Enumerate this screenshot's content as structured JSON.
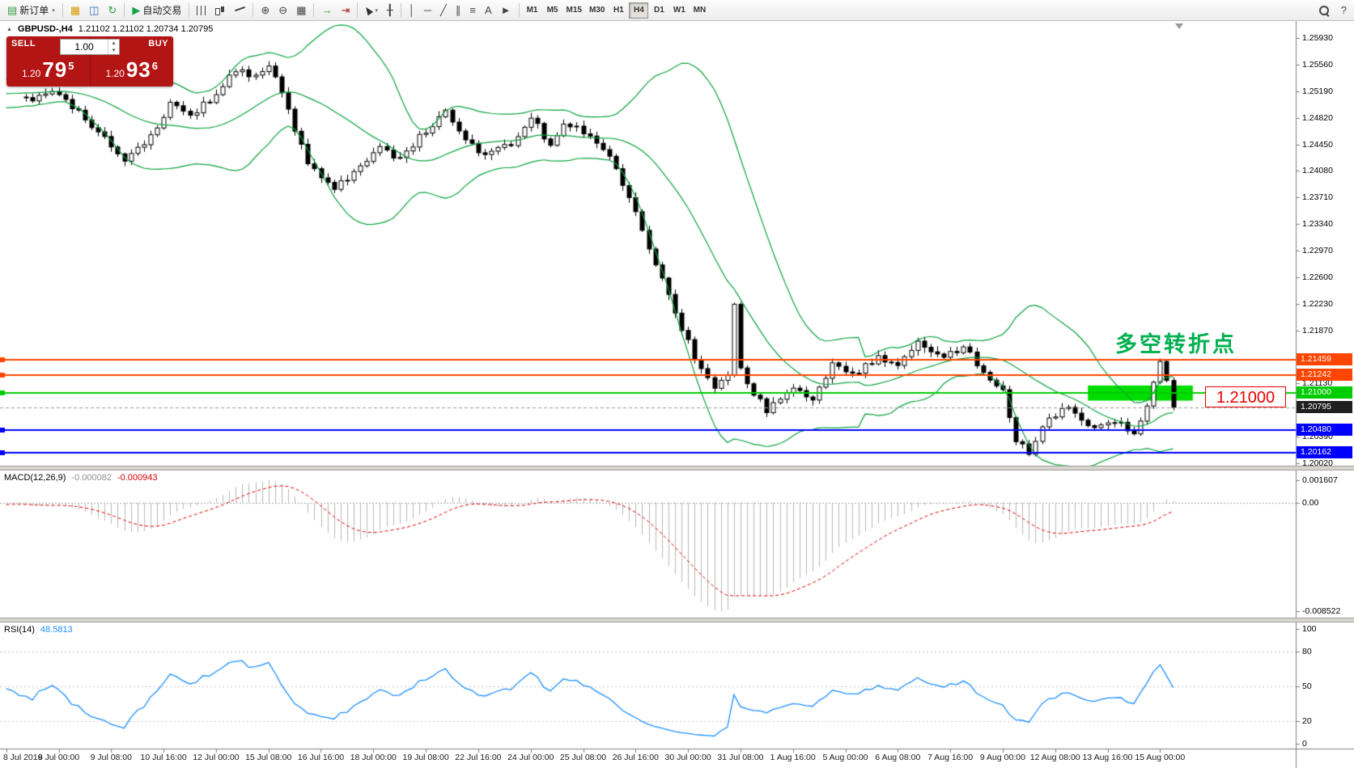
{
  "colors": {
    "bollinger": "#0aa33e",
    "rsi_line": "#1e90ff",
    "macd_hist": "#b8b8b8",
    "macd_signal": "#e00000",
    "axis_line": "#808080",
    "candle_up_fill": "#ffffff",
    "candle_down_fill": "#000000",
    "candle_stroke": "#000000",
    "current_chip_bg": "#1f1f1f",
    "annotation_green": "#00b050",
    "rect_fill": "#00dd00",
    "price_label_red": "#e80000",
    "hline_orange": "#ff4500",
    "hline_green": "#00cc00",
    "hline_blue": "#0000ff"
  },
  "icons": {
    "new-order": "▤",
    "chart-window": "▦",
    "profiles": "◫",
    "refresh": "↻",
    "play": "▶",
    "tile": "▦",
    "autoscroll": "→",
    "shift": "⇥",
    "crosshair": "╂",
    "vline": "│",
    "hline": "─",
    "trendline": "╱",
    "channel": "∥",
    "fibonacci": "≡",
    "text": "A",
    "arrow": "►",
    "zoom-in": "⊕",
    "zoom-out": "⊖",
    "question": "?",
    "css-ohlc": "",
    "css-candle": "",
    "css-line": "",
    "css-cursor": "",
    "css-lens": ""
  },
  "toolbar": {
    "groups": [
      {
        "items": [
          {
            "name": "new-order-button",
            "icon": "new-order",
            "icon_color": "#2f9e44",
            "label": "新订单",
            "caret": true
          }
        ]
      },
      {
        "items": [
          {
            "name": "charts-button",
            "icon": "chart-window",
            "icon_color": "#d79b00"
          },
          {
            "name": "profiles-button",
            "icon": "profiles",
            "icon_color": "#2e6fb7"
          },
          {
            "name": "refresh-button",
            "icon": "refresh",
            "icon_color": "#2f9e44"
          }
        ]
      },
      {
        "items": [
          {
            "name": "autotrading-button",
            "icon": "play",
            "icon_color": "#18a348",
            "label": "自动交易"
          }
        ]
      },
      {
        "items": [
          {
            "name": "bar-chart-button",
            "icon": "css-ohlc"
          },
          {
            "name": "candlestick-button",
            "icon": "css-candle"
          },
          {
            "name": "line-chart-button",
            "icon": "css-line"
          }
        ]
      },
      {
        "items": [
          {
            "name": "zoom-in-button",
            "icon": "zoom-in"
          },
          {
            "name": "zoom-out-button",
            "icon": "zoom-out"
          },
          {
            "name": "tile-windows-button",
            "icon": "tile"
          }
        ]
      },
      {
        "items": [
          {
            "name": "auto-scroll-button",
            "icon": "autoscroll",
            "icon_color": "#2f9e44"
          },
          {
            "name": "chart-shift-button",
            "icon": "shift",
            "icon_color": "#b02020"
          }
        ]
      },
      {
        "items": [
          {
            "name": "cursor-button",
            "icon": "css-cursor",
            "caret": true
          },
          {
            "name": "crosshair-button",
            "icon": "crosshair"
          }
        ]
      },
      {
        "items": [
          {
            "name": "vertical-line-button",
            "icon": "vline"
          },
          {
            "name": "horizontal-line-button",
            "icon": "hline"
          },
          {
            "name": "trendline-button",
            "icon": "trendline"
          },
          {
            "name": "channel-button",
            "icon": "channel"
          },
          {
            "name": "fibonacci-button",
            "icon": "fibonacci"
          },
          {
            "name": "text-button",
            "icon": "text"
          },
          {
            "name": "arrow-button",
            "icon": "arrow"
          }
        ]
      }
    ],
    "timeframes": [
      "M1",
      "M5",
      "M15",
      "M30",
      "H1",
      "H4",
      "D1",
      "W1",
      "MN"
    ],
    "active_timeframe": "H4",
    "right_items": [
      {
        "name": "search-button",
        "icon": "css-lens"
      },
      {
        "name": "help-button",
        "icon": "question"
      }
    ]
  },
  "chart_header": {
    "symbol": "GBPUSD-,H4",
    "ohlc": "1.21102 1.21102 1.20734 1.20795"
  },
  "one_click": {
    "sell_label": "SELL",
    "buy_label": "BUY",
    "volume": "1.00",
    "bid": {
      "prefix": "1.20",
      "big": "79",
      "sup": "5"
    },
    "ask": {
      "prefix": "1.20",
      "big": "93",
      "sup": "6"
    }
  },
  "annotation": {
    "text": "多空转折点"
  },
  "price_label_box": {
    "text": "1.21000"
  },
  "current_price": {
    "label": "1.20795",
    "value": 1.20795
  },
  "hlines": [
    {
      "price": 1.21459,
      "label": "1.21459",
      "color_key": "hline_orange",
      "width": 2
    },
    {
      "price": 1.21242,
      "label": "1.21242",
      "color_key": "hline_orange",
      "width": 2
    },
    {
      "price": 1.21,
      "label": "1.21000",
      "color_key": "hline_green",
      "width": 2
    },
    {
      "price": 1.2048,
      "label": "1.20480",
      "color_key": "hline_blue",
      "width": 2
    },
    {
      "price": 1.20162,
      "label": "1.20162",
      "color_key": "hline_blue",
      "width": 2
    }
  ],
  "y_axis": {
    "ticks": [
      "1.25930",
      "1.25560",
      "1.25190",
      "1.24820",
      "1.24450",
      "1.24080",
      "1.23710",
      "1.23340",
      "1.22970",
      "1.22600",
      "1.22230",
      "1.21870",
      "1.21500",
      "1.21130",
      "1.20760",
      "1.20390",
      "1.20020"
    ]
  },
  "x_axis": {
    "labels": [
      "8 Jul 2019",
      "8 Jul 00:00",
      "9 Jul 08:00",
      "10 Jul 16:00",
      "12 Jul 00:00",
      "15 Jul 08:00",
      "16 Jul 16:00",
      "18 Jul 00:00",
      "19 Jul 08:00",
      "22 Jul 16:00",
      "24 Jul 00:00",
      "25 Jul 08:00",
      "26 Jul 16:00",
      "30 Jul 00:00",
      "31 Jul 08:00",
      "1 Aug 16:00",
      "5 Aug 00:00",
      "6 Aug 08:00",
      "7 Aug 16:00",
      "9 Aug 00:00",
      "12 Aug 08:00",
      "13 Aug 16:00",
      "15 Aug 00:00"
    ]
  },
  "macd": {
    "name": "MACD(12,26,9)",
    "value_main": "-0.000082",
    "value_signal": "-0.000943",
    "axis_max": "0.001607",
    "axis_zero": "0.00",
    "axis_min": "-0.008522",
    "fast": 12,
    "slow": 26,
    "signal": 9
  },
  "rsi": {
    "name": "RSI(14)",
    "value": "48.5813",
    "period": 14,
    "axis_labels": [
      "100",
      "80",
      "50",
      "20",
      "0"
    ],
    "levels": [
      80,
      50,
      20
    ]
  },
  "chart_data": {
    "type": "candlestick",
    "symbol": "GBPUSD-",
    "timeframe": "H4",
    "visible_bars": 176,
    "last_price": 1.20795,
    "warmup_price": 1.2535,
    "y_range": [
      1.2002,
      1.2593
    ],
    "bollinger": {
      "period": 20,
      "deviation": 2
    },
    "price_anchors": [
      [
        1,
        1.2505
      ],
      [
        4,
        1.252
      ],
      [
        11,
        1.2465
      ],
      [
        15,
        1.2425
      ],
      [
        19,
        1.2455
      ],
      [
        22,
        1.25
      ],
      [
        25,
        1.2485
      ],
      [
        29,
        1.2515
      ],
      [
        32,
        1.255
      ],
      [
        35,
        1.2537
      ],
      [
        37,
        1.2557
      ],
      [
        40,
        1.249
      ],
      [
        43,
        1.242
      ],
      [
        47,
        1.2385
      ],
      [
        50,
        1.2405
      ],
      [
        54,
        1.244
      ],
      [
        57,
        1.2425
      ],
      [
        61,
        1.2465
      ],
      [
        64,
        1.249
      ],
      [
        67,
        1.245
      ],
      [
        70,
        1.243
      ],
      [
        74,
        1.2445
      ],
      [
        77,
        1.2485
      ],
      [
        80,
        1.244
      ],
      [
        82,
        1.2475
      ],
      [
        86,
        1.2458
      ],
      [
        89,
        1.243
      ],
      [
        92,
        1.2372
      ],
      [
        95,
        1.23
      ],
      [
        99,
        1.221
      ],
      [
        102,
        1.215
      ],
      [
        105,
        1.2105
      ],
      [
        107,
        1.2125
      ],
      [
        108,
        1.2225
      ],
      [
        109,
        1.213
      ],
      [
        111,
        1.21
      ],
      [
        113,
        1.2075
      ],
      [
        117,
        1.2105
      ],
      [
        120,
        1.209
      ],
      [
        123,
        1.214
      ],
      [
        126,
        1.2125
      ],
      [
        130,
        1.215
      ],
      [
        133,
        1.2135
      ],
      [
        136,
        1.217
      ],
      [
        140,
        1.215
      ],
      [
        143,
        1.2165
      ],
      [
        146,
        1.213
      ],
      [
        149,
        1.2105
      ],
      [
        151,
        1.2035
      ],
      [
        153,
        1.2018
      ],
      [
        156,
        1.2065
      ],
      [
        159,
        1.208
      ],
      [
        163,
        1.205
      ],
      [
        166,
        1.2062
      ],
      [
        169,
        1.2045
      ],
      [
        171,
        1.2085
      ],
      [
        173,
        1.2142
      ],
      [
        174,
        1.2115
      ],
      [
        175,
        1.20795
      ]
    ],
    "rectangle": {
      "bar_from": 162,
      "bar_to": 178,
      "price_top": 1.211,
      "price_bottom": 1.2089
    },
    "support_resistance_levels": [
      1.21459,
      1.21242,
      1.21,
      1.2048,
      1.20162
    ]
  }
}
